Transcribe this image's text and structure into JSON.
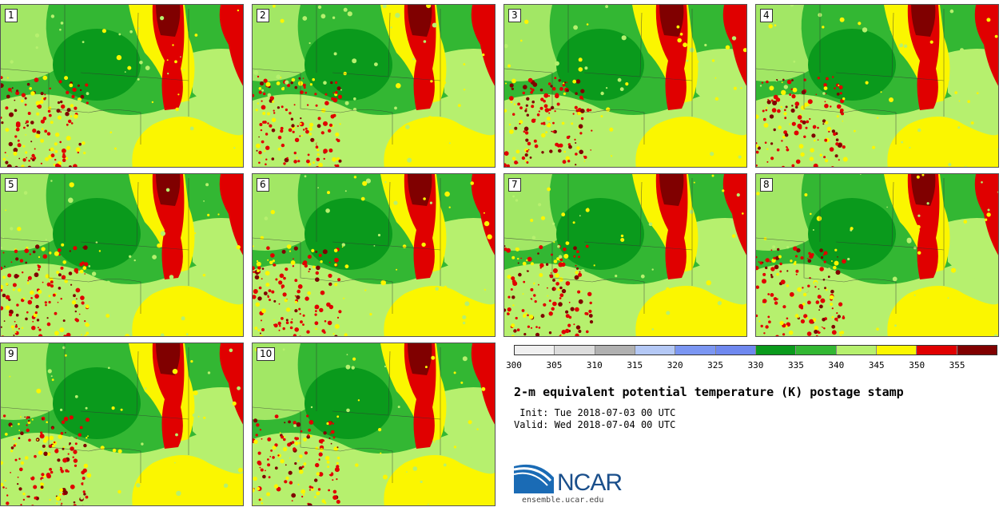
{
  "panels": [
    {
      "label": "1"
    },
    {
      "label": "2"
    },
    {
      "label": "3"
    },
    {
      "label": "4"
    },
    {
      "label": "5"
    },
    {
      "label": "6"
    },
    {
      "label": "7"
    },
    {
      "label": "8"
    },
    {
      "label": "9"
    },
    {
      "label": "10"
    }
  ],
  "colorbar": {
    "colors": [
      "#f0f0f0",
      "#dcdcdc",
      "#b0b0b0",
      "#b4c8f5",
      "#7b96f2",
      "#6f88ef",
      "#0a9a1c",
      "#33b733",
      "#b6f06e",
      "#fbf600",
      "#e00000",
      "#800000"
    ],
    "ticks": [
      "300",
      "305",
      "310",
      "315",
      "320",
      "325",
      "330",
      "335",
      "340",
      "345",
      "350",
      "355"
    ]
  },
  "title": "2-m equivalent potential temperature (K) postage stamp",
  "init": " Init: Tue 2018-07-03 00 UTC",
  "valid": "Valid: Wed 2018-07-04 00 UTC",
  "logo": {
    "name": "NCAR",
    "url": "ensemble.ucar.edu"
  }
}
